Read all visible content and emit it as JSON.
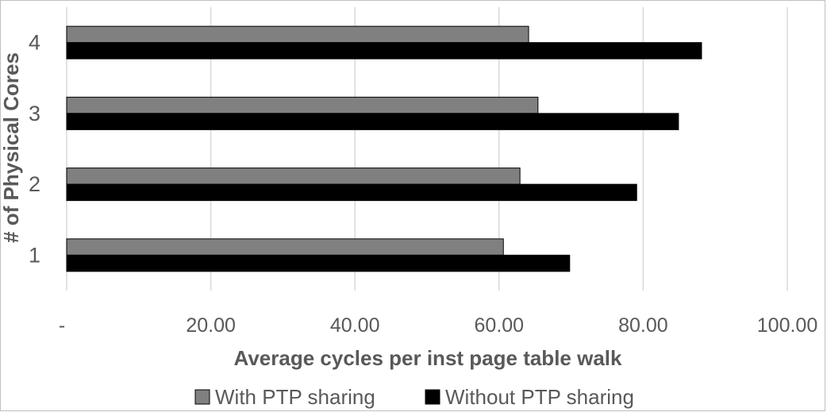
{
  "chart_data": {
    "type": "bar",
    "orientation": "horizontal",
    "categories": [
      "1",
      "2",
      "3",
      "4"
    ],
    "series": [
      {
        "name": "With PTP sharing",
        "color": "#808080",
        "values": [
          60.6,
          62.9,
          65.4,
          64.1
        ]
      },
      {
        "name": "Without PTP sharing",
        "color": "#000000",
        "values": [
          69.8,
          79.1,
          84.9,
          88.1
        ]
      }
    ],
    "x_ticks": [
      "-",
      "20.00",
      "40.00",
      "60.00",
      "80.00",
      "100.00"
    ],
    "xlim": [
      0,
      100
    ],
    "xlabel": "Average cycles per inst page table walk",
    "ylabel": "# of Physical Cores",
    "grid": "vertical",
    "legend_position": "bottom"
  }
}
